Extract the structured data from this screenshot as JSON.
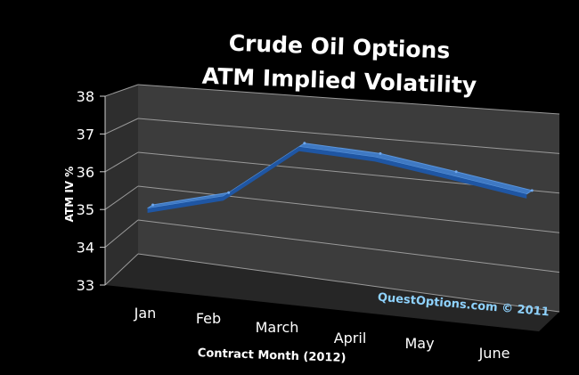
{
  "chart_data": {
    "type": "area",
    "title": [
      "Crude Oil Options",
      "ATM Implied Volatility"
    ],
    "xlabel": "Contract Month (2012)",
    "ylabel": "ATM IV %",
    "categories": [
      "Jan",
      "Feb",
      "March",
      "April",
      "May",
      "June"
    ],
    "values": [
      34.5,
      35.1,
      36.7,
      36.6,
      36.3,
      36.0
    ],
    "ylim": [
      33,
      38
    ],
    "yticks": [
      "33",
      "34",
      "35",
      "36",
      "37",
      "38"
    ],
    "grid": true,
    "annotation": "QuestOptions.com © 2011",
    "colors": {
      "background": "#000000",
      "plot_wall": "#3c3c3c",
      "floor": "#262626",
      "series_top": "#3f79c3",
      "series_front": "#1f56a3",
      "axis_text": "#ffffff",
      "annotation": "#8fd3ff"
    }
  }
}
